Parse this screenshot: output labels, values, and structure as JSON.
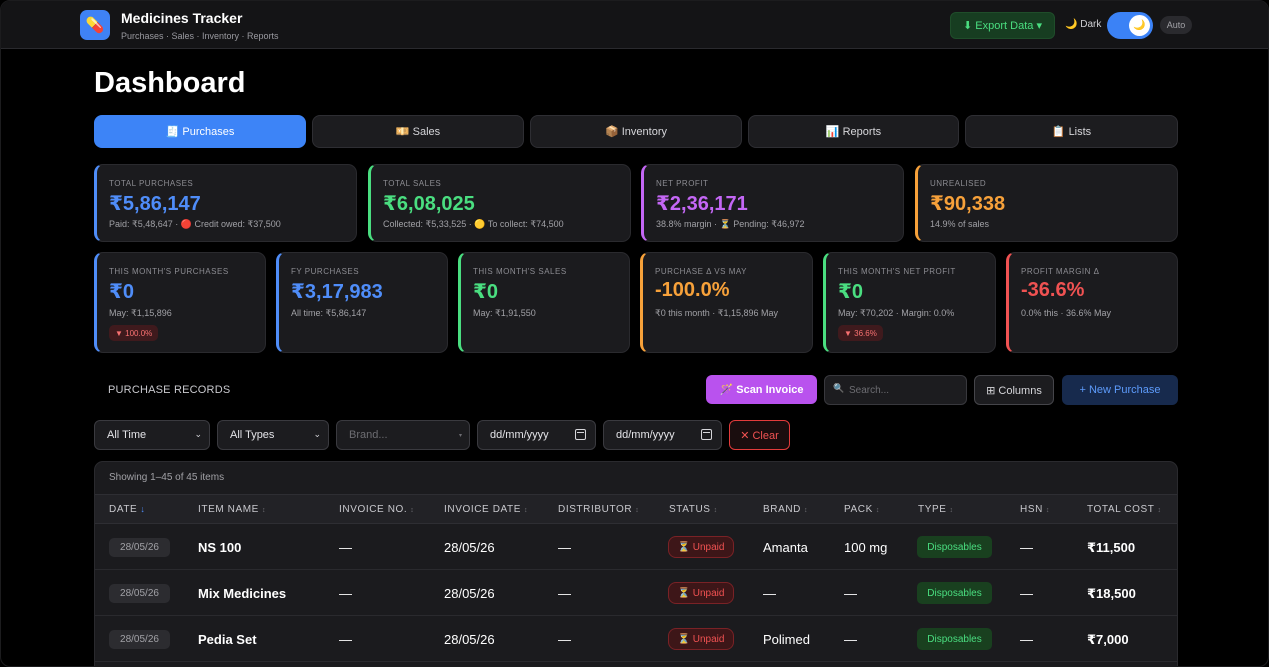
{
  "app": {
    "icon": "pill-icon",
    "title": "Medicines Tracker",
    "subtitle": "Purchases · Sales · Inventory · Reports"
  },
  "header": {
    "export_label": "⬇ Export Data ▾",
    "dark_label": "🌙 Dark",
    "toggle_icon": "🌙",
    "auto_label": "Auto"
  },
  "page_title": "Dashboard",
  "tabs": [
    {
      "label": "🧾 Purchases",
      "active": true
    },
    {
      "label": "💴 Sales",
      "active": false
    },
    {
      "label": "📦 Inventory",
      "active": false
    },
    {
      "label": "📊 Reports",
      "active": false
    },
    {
      "label": "📋 Lists",
      "active": false
    }
  ],
  "stats_top": [
    {
      "label": "TOTAL PURCHASES",
      "value": "₹5,86,147",
      "sub": "Paid: ₹5,48,647 · 🔴 Credit owed: ₹37,500",
      "color": "#4f8df9"
    },
    {
      "label": "TOTAL SALES",
      "value": "₹6,08,025",
      "sub": "Collected: ₹5,33,525 · 🟡 To collect: ₹74,500",
      "color": "#4ade80"
    },
    {
      "label": "NET PROFIT",
      "value": "₹2,36,171",
      "sub": "38.8% margin · ⏳ Pending: ₹46,972",
      "color": "#c467f5"
    },
    {
      "label": "UNREALISED",
      "value": "₹90,338",
      "sub": "14.9% of sales",
      "color": "#f7a13a"
    }
  ],
  "stats_bottom": [
    {
      "label": "THIS MONTH'S PURCHASES",
      "value": "₹0",
      "sub": "May: ₹1,15,896",
      "pill": "▼ 100.0%",
      "color": "#4f8df9"
    },
    {
      "label": "FY PURCHASES",
      "value": "₹3,17,983",
      "sub": "All time: ₹5,86,147",
      "color": "#4f8df9"
    },
    {
      "label": "THIS MONTH'S SALES",
      "value": "₹0",
      "sub": "May: ₹1,91,550",
      "color": "#4ade80"
    },
    {
      "label": "PURCHASE Δ VS MAY",
      "value": "-100.0%",
      "sub": "₹0 this month · ₹1,15,896 May",
      "color": "#f7a13a"
    },
    {
      "label": "THIS MONTH'S NET PROFIT",
      "value": "₹0",
      "sub": "May: ₹70,202 · Margin: 0.0%",
      "pill": "▼ 36.6%",
      "color": "#4ade80"
    },
    {
      "label": "PROFIT MARGIN Δ",
      "value": "-36.6%",
      "sub": "0.0% this · 36.6% May",
      "color": "#f05252"
    }
  ],
  "records": {
    "title": "PURCHASE RECORDS",
    "scan_label": "🪄 Scan Invoice",
    "search_placeholder": "Search...",
    "columns_label": "⊞ Columns",
    "new_label": "+ New Purchase"
  },
  "filters": {
    "time": "All Time",
    "types": "All Types",
    "brand_placeholder": "Brand...",
    "date_from": "dd/mm/yyyy",
    "date_to": "dd/mm/yyyy",
    "clear_label": "✕ Clear"
  },
  "table": {
    "showing": "Showing 1–45 of 45 items",
    "columns": [
      {
        "label": "DATE",
        "sort": "↓",
        "active": true
      },
      {
        "label": "ITEM NAME",
        "sort": "↕"
      },
      {
        "label": "INVOICE NO.",
        "sort": "↕"
      },
      {
        "label": "INVOICE DATE",
        "sort": "↕"
      },
      {
        "label": "DISTRIBUTOR",
        "sort": "↕"
      },
      {
        "label": "STATUS",
        "sort": "↕"
      },
      {
        "label": "BRAND",
        "sort": "↕"
      },
      {
        "label": "PACK",
        "sort": "↕"
      },
      {
        "label": "TYPE",
        "sort": "↕"
      },
      {
        "label": "HSN",
        "sort": "↕"
      },
      {
        "label": "TOTAL COST",
        "sort": "↕"
      }
    ],
    "rows": [
      {
        "date": "28/05/26",
        "item": "NS 100",
        "invoice_no": "—",
        "invoice_date": "28/05/26",
        "distributor": "—",
        "status": "⏳ Unpaid",
        "brand": "Amanta",
        "pack": "100 mg",
        "type": "Disposables",
        "hsn": "—",
        "total": "₹11,500"
      },
      {
        "date": "28/05/26",
        "item": "Mix Medicines",
        "invoice_no": "—",
        "invoice_date": "28/05/26",
        "distributor": "—",
        "status": "⏳ Unpaid",
        "brand": "—",
        "pack": "—",
        "type": "Disposables",
        "hsn": "—",
        "total": "₹18,500"
      },
      {
        "date": "28/05/26",
        "item": "Pedia Set",
        "invoice_no": "—",
        "invoice_date": "28/05/26",
        "distributor": "—",
        "status": "⏳ Unpaid",
        "brand": "Polimed",
        "pack": "—",
        "type": "Disposables",
        "hsn": "—",
        "total": "₹7,000"
      }
    ]
  }
}
